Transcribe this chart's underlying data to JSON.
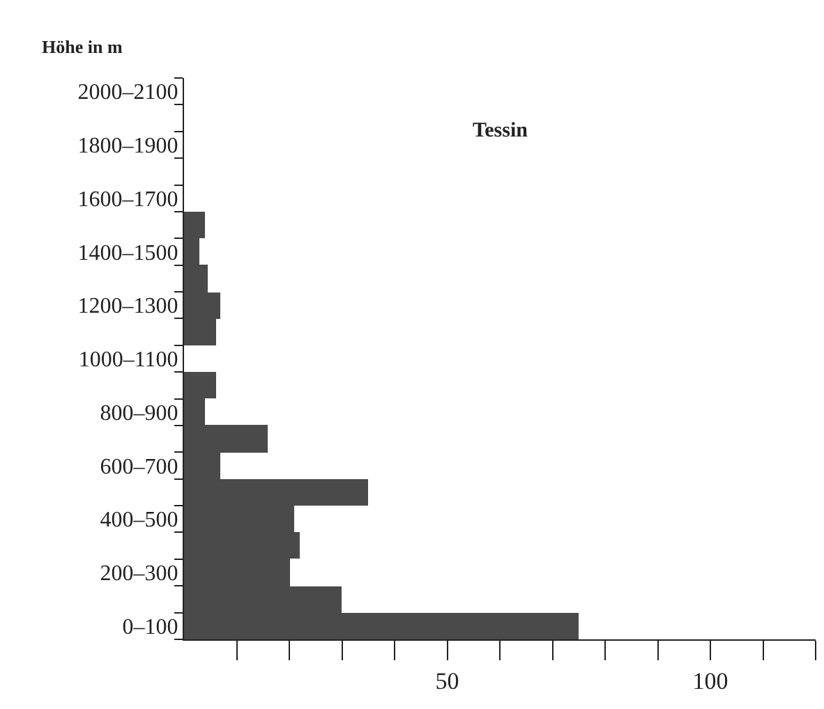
{
  "chart_data": {
    "type": "bar",
    "orientation": "horizontal",
    "title": "Tessin",
    "ylabel": "Höhe in m",
    "categories": [
      "2000–2100",
      null,
      "1800–1900",
      null,
      "1600–1700",
      null,
      "1400–1500",
      null,
      "1200–1300",
      null,
      "1000–1100",
      null,
      "800–900",
      null,
      "600–700",
      null,
      "400–500",
      null,
      "200–300",
      null,
      "0–100"
    ],
    "values": [
      0,
      0,
      0,
      0,
      0,
      4,
      3,
      4.5,
      7,
      6,
      0,
      6,
      4,
      16,
      7,
      35,
      21,
      22,
      20,
      30,
      75
    ],
    "color": "#4a4a4a",
    "xlim": [
      0,
      120
    ],
    "xticks": [
      {
        "value": 10,
        "label": null
      },
      {
        "value": 20,
        "label": null
      },
      {
        "value": 30,
        "label": null
      },
      {
        "value": 40,
        "label": null
      },
      50,
      {
        "value": 60,
        "label": null
      },
      {
        "value": 70,
        "label": null
      },
      {
        "value": 80,
        "label": null
      },
      {
        "value": 90,
        "label": null
      },
      100,
      {
        "value": 110,
        "label": null
      },
      {
        "value": 120,
        "label": null
      }
    ]
  }
}
